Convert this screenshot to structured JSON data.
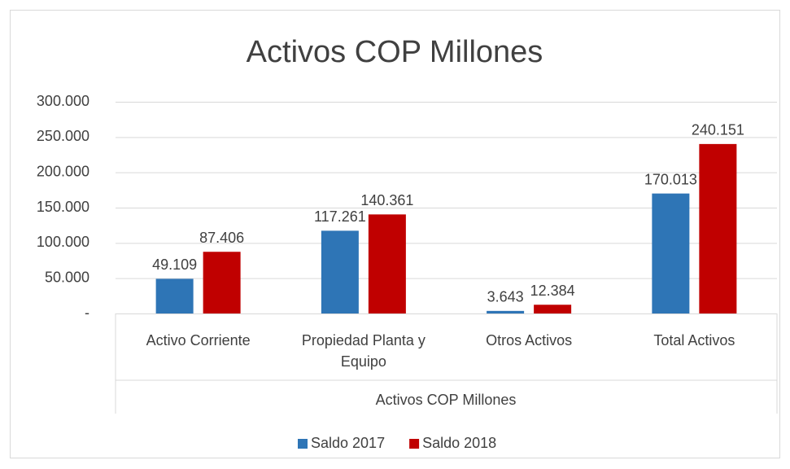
{
  "chart_data": {
    "type": "bar",
    "title": "Activos COP Millones",
    "x_label": "Activos COP Millones",
    "categories": [
      "Activo Corriente",
      "Propiedad Planta y Equipo",
      "Otros Activos",
      "Total Activos"
    ],
    "series": [
      {
        "name": "Saldo 2017",
        "color": "#2e75b6",
        "values": [
          49109,
          117261,
          3643,
          170013
        ],
        "value_labels": [
          "49.109",
          "117.261",
          "3.643",
          "170.013"
        ]
      },
      {
        "name": "Saldo 2018",
        "color": "#c00000",
        "values": [
          87406,
          140361,
          12384,
          240151
        ],
        "value_labels": [
          "87.406",
          "140.361",
          "12.384",
          "240.151"
        ]
      }
    ],
    "ylim": [
      0,
      300000
    ],
    "yticks": [
      {
        "value": 0,
        "label": "-"
      },
      {
        "value": 50000,
        "label": "50.000"
      },
      {
        "value": 100000,
        "label": "100.000"
      },
      {
        "value": 150000,
        "label": "150.000"
      },
      {
        "value": 200000,
        "label": "200.000"
      },
      {
        "value": 250000,
        "label": "250.000"
      },
      {
        "value": 300000,
        "label": "300.000"
      }
    ],
    "grid": true,
    "legend": "bottom"
  }
}
